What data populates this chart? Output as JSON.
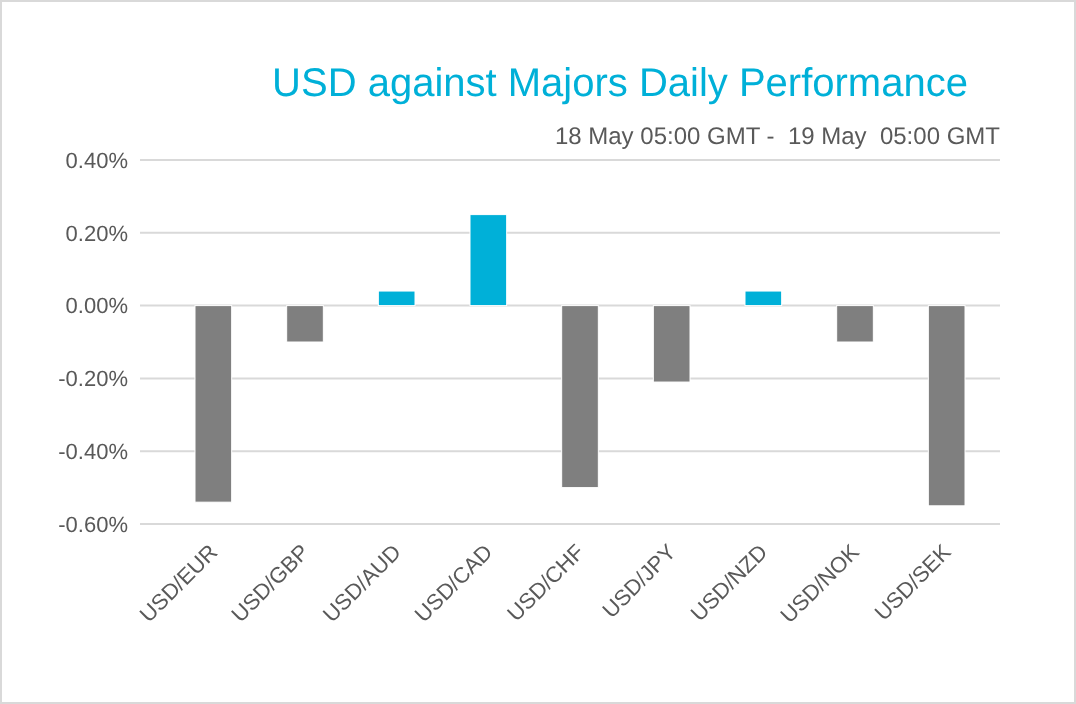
{
  "chart_data": {
    "type": "bar",
    "title": "USD against Majors Daily Performance",
    "subtitle": "18 May 05:00 GMT -  19 May  05:00 GMT",
    "categories": [
      "USD/EUR",
      "USD/GBP",
      "USD/AUD",
      "USD/CAD",
      "USD/CHF",
      "USD/JPY",
      "USD/NZD",
      "USD/NOK",
      "USD/SEK"
    ],
    "values": [
      -0.54,
      -0.1,
      0.04,
      0.25,
      -0.5,
      -0.21,
      0.04,
      -0.1,
      -0.55
    ],
    "colors": [
      "#7f7f7f",
      "#7f7f7f",
      "#00b0d8",
      "#00b0d8",
      "#7f7f7f",
      "#7f7f7f",
      "#00b0d8",
      "#7f7f7f",
      "#7f7f7f"
    ],
    "ylim": [
      -0.6,
      0.4
    ],
    "yticks": [
      {
        "value": -0.6,
        "label": "-0.60%"
      },
      {
        "value": -0.4,
        "label": "-0.40%"
      },
      {
        "value": -0.2,
        "label": "-0.20%"
      },
      {
        "value": 0,
        "label": "0.00%"
      },
      {
        "value": 0.2,
        "label": "0.20%"
      },
      {
        "value": 0.4,
        "label": "0.40%"
      }
    ],
    "grid": "y"
  }
}
